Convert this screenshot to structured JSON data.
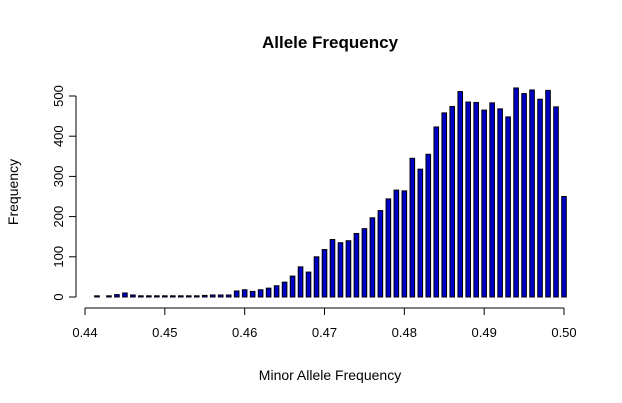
{
  "chart_data": {
    "type": "bar",
    "title": "Allele Frequency",
    "xlabel": "Minor Allele Frequency",
    "ylabel": "Frequency",
    "xlim": [
      0.44,
      0.5
    ],
    "ylim": [
      0,
      520
    ],
    "x_ticks": [
      "0.44",
      "0.45",
      "0.46",
      "0.47",
      "0.48",
      "0.49",
      "0.50"
    ],
    "y_ticks": [
      "0",
      "100",
      "200",
      "300",
      "400",
      "500"
    ],
    "bar_color": "#0000cc",
    "bar_outline": "#000000",
    "grid": false,
    "legend": "none",
    "x": [
      0.4415,
      0.443,
      0.444,
      0.445,
      0.446,
      0.447,
      0.448,
      0.449,
      0.45,
      0.451,
      0.452,
      0.453,
      0.454,
      0.455,
      0.456,
      0.457,
      0.458,
      0.459,
      0.46,
      0.461,
      0.462,
      0.463,
      0.464,
      0.465,
      0.466,
      0.467,
      0.468,
      0.469,
      0.47,
      0.471,
      0.472,
      0.473,
      0.474,
      0.475,
      0.476,
      0.477,
      0.478,
      0.479,
      0.48,
      0.481,
      0.482,
      0.483,
      0.484,
      0.485,
      0.486,
      0.487,
      0.488,
      0.489,
      0.49,
      0.491,
      0.492,
      0.493,
      0.494,
      0.495,
      0.496,
      0.497,
      0.498,
      0.499,
      0.5
    ],
    "values": [
      2,
      1,
      6,
      10,
      5,
      2,
      2,
      2,
      1,
      1,
      1,
      1,
      1,
      4,
      5,
      5,
      5,
      15,
      18,
      14,
      18,
      22,
      28,
      37,
      52,
      75,
      62,
      100,
      118,
      143,
      135,
      140,
      158,
      170,
      197,
      215,
      244,
      266,
      264,
      345,
      318,
      355,
      423,
      458,
      474,
      511,
      485,
      484,
      465,
      483,
      468,
      448,
      520,
      506,
      515,
      492,
      514,
      473,
      250
    ]
  }
}
